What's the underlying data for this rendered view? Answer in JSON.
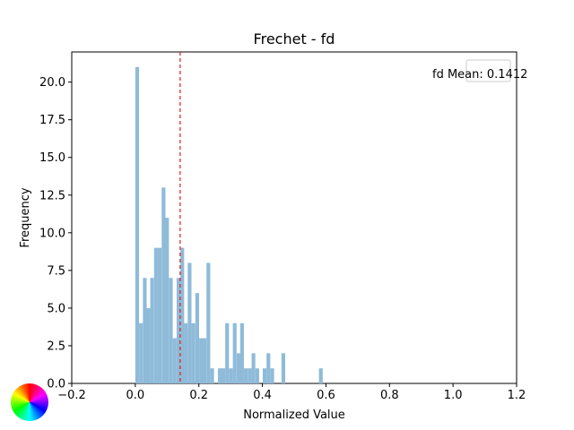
{
  "chart_data": {
    "type": "bar",
    "title": "Frechet - fd",
    "xlabel": "Normalized Value",
    "ylabel": "Frequency",
    "xlim": [
      -0.2,
      1.2
    ],
    "ylim": [
      0,
      22
    ],
    "xticks": [
      "−0.2",
      "0.0",
      "0.2",
      "0.4",
      "0.6",
      "0.8",
      "1.0",
      "1.2"
    ],
    "yticks": [
      "0.0",
      "2.5",
      "5.0",
      "7.5",
      "10.0",
      "12.5",
      "15.0",
      "17.5",
      "20.0"
    ],
    "bar_color": "#8fbbd9",
    "bin_width": 0.0118,
    "bins": [
      {
        "x": 0.0,
        "y": 21
      },
      {
        "x": 0.012,
        "y": 4
      },
      {
        "x": 0.024,
        "y": 7
      },
      {
        "x": 0.035,
        "y": 5
      },
      {
        "x": 0.047,
        "y": 7
      },
      {
        "x": 0.059,
        "y": 9
      },
      {
        "x": 0.071,
        "y": 9
      },
      {
        "x": 0.083,
        "y": 13
      },
      {
        "x": 0.094,
        "y": 11
      },
      {
        "x": 0.106,
        "y": 7
      },
      {
        "x": 0.118,
        "y": 3
      },
      {
        "x": 0.13,
        "y": 7
      },
      {
        "x": 0.142,
        "y": 9
      },
      {
        "x": 0.153,
        "y": 4
      },
      {
        "x": 0.165,
        "y": 8
      },
      {
        "x": 0.177,
        "y": 4
      },
      {
        "x": 0.189,
        "y": 6
      },
      {
        "x": 0.201,
        "y": 3
      },
      {
        "x": 0.212,
        "y": 3
      },
      {
        "x": 0.224,
        "y": 8
      },
      {
        "x": 0.236,
        "y": 1
      },
      {
        "x": 0.26,
        "y": 1
      },
      {
        "x": 0.271,
        "y": 1
      },
      {
        "x": 0.283,
        "y": 4
      },
      {
        "x": 0.295,
        "y": 1
      },
      {
        "x": 0.307,
        "y": 4
      },
      {
        "x": 0.319,
        "y": 2
      },
      {
        "x": 0.33,
        "y": 4
      },
      {
        "x": 0.342,
        "y": 1
      },
      {
        "x": 0.354,
        "y": 1
      },
      {
        "x": 0.366,
        "y": 2
      },
      {
        "x": 0.378,
        "y": 1
      },
      {
        "x": 0.401,
        "y": 1
      },
      {
        "x": 0.413,
        "y": 2
      },
      {
        "x": 0.425,
        "y": 1
      },
      {
        "x": 0.46,
        "y": 2
      },
      {
        "x": 0.578,
        "y": 1
      }
    ],
    "mean_line": {
      "value": 0.1412,
      "color": "#e41a1c",
      "style": "dashed"
    },
    "legend": {
      "label": "fd Mean: 0.1412",
      "placement": "top-right"
    }
  }
}
